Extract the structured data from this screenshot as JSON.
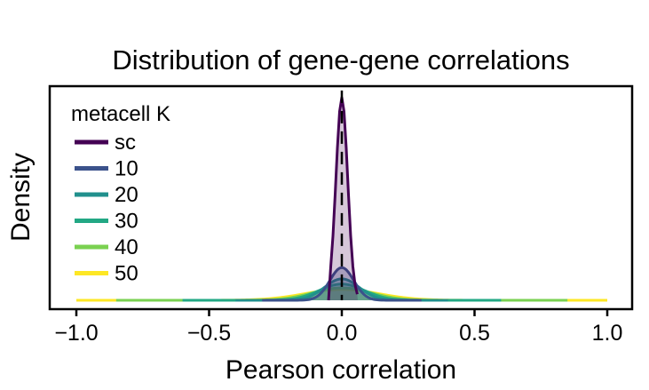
{
  "chart_data": {
    "type": "area",
    "title": "Distribution of gene-gene correlations",
    "xlabel": "Pearson correlation",
    "ylabel": "Density",
    "xlim": [
      -1.0,
      1.0
    ],
    "ylim": [
      0,
      9.5
    ],
    "xticks": [
      -1.0,
      -0.5,
      0.0,
      0.5,
      1.0
    ],
    "xtick_labels": [
      "−1.0",
      "−0.5",
      "0.0",
      "0.5",
      "1.0"
    ],
    "yticks_shown": false,
    "grid": false,
    "vline": {
      "x": 0.0,
      "style": "dashed"
    },
    "legend": {
      "title": "metacell K",
      "placement": "top-left"
    },
    "series": [
      {
        "name": "sc",
        "color": "#440154",
        "peak_x": 0.0,
        "peak_density": 9.0,
        "sd": 0.022,
        "range": [
          -0.05,
          0.06
        ],
        "fill_opacity": 0.22
      },
      {
        "name": "10",
        "color": "#3b528b",
        "peak_x": 0.0,
        "peak_density": 1.45,
        "sd": 0.045,
        "range": [
          -0.3,
          0.3
        ],
        "fill_opacity": 0.3
      },
      {
        "name": "20",
        "color": "#21908d",
        "peak_x": 0.0,
        "peak_density": 0.95,
        "sd": 0.065,
        "range": [
          -0.4,
          0.4
        ],
        "fill_opacity": 0.3
      },
      {
        "name": "30",
        "color": "#22a884",
        "peak_x": 0.0,
        "peak_density": 0.72,
        "sd": 0.085,
        "range": [
          -0.6,
          0.6
        ],
        "fill_opacity": 0.3
      },
      {
        "name": "40",
        "color": "#7ad151",
        "peak_x": 0.0,
        "peak_density": 0.55,
        "sd": 0.11,
        "range": [
          -0.85,
          0.85
        ],
        "fill_opacity": 0.35
      },
      {
        "name": "50",
        "color": "#fde725",
        "peak_x": 0.0,
        "peak_density": 0.48,
        "sd": 0.14,
        "range": [
          -1.0,
          1.0
        ],
        "fill_opacity": 0.35
      }
    ]
  }
}
